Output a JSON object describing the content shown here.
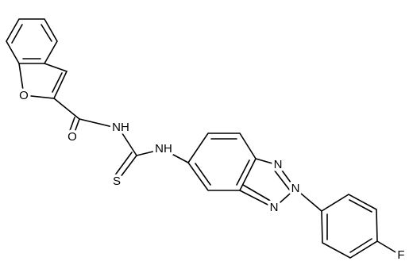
{
  "molecule": {
    "atoms": [
      {
        "label": "O"
      },
      {
        "label": "O"
      },
      {
        "label": "NH"
      },
      {
        "label": "S"
      },
      {
        "label": "NH"
      },
      {
        "label": "N"
      },
      {
        "label": "N"
      },
      {
        "label": "N"
      },
      {
        "label": "F"
      }
    ]
  }
}
